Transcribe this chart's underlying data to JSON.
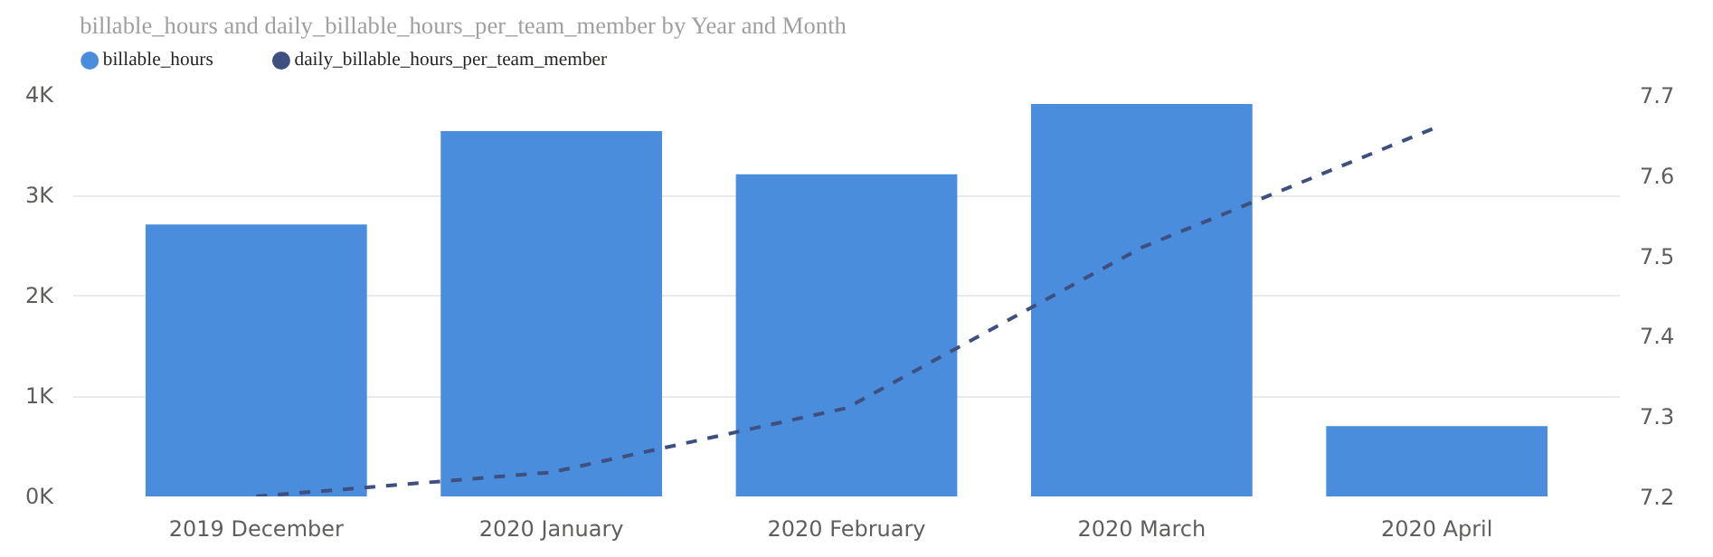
{
  "chart_data": {
    "type": "bar",
    "title": "billable_hours and daily_billable_hours_per_team_member by Year and Month",
    "categories": [
      "2019 December",
      "2020 January",
      "2020 February",
      "2020 March",
      "2020 April"
    ],
    "series": [
      {
        "name": "billable_hours",
        "color": "#4a8ddc",
        "values": [
          2710,
          3640,
          3210,
          3910,
          700
        ]
      },
      {
        "name": "daily_billable_hours_per_team_member",
        "color": "#3f4f7f",
        "type": "line",
        "axis": "y2",
        "line_style": "dashed",
        "values": [
          7.2,
          7.23,
          7.31,
          7.51,
          7.66
        ]
      }
    ],
    "ylim": [
      0,
      4000
    ],
    "yticks": [
      {
        "value": 0,
        "label": "0K"
      },
      {
        "value": 1000,
        "label": "1K"
      },
      {
        "value": 2000,
        "label": "2K"
      },
      {
        "value": 3000,
        "label": "3K"
      },
      {
        "value": 4000,
        "label": "4K"
      }
    ],
    "y2lim": [
      7.2,
      7.7
    ],
    "y2ticks": [
      7.2,
      7.3,
      7.4,
      7.5,
      7.6,
      7.7
    ],
    "grid": "y",
    "legend": "top left"
  }
}
